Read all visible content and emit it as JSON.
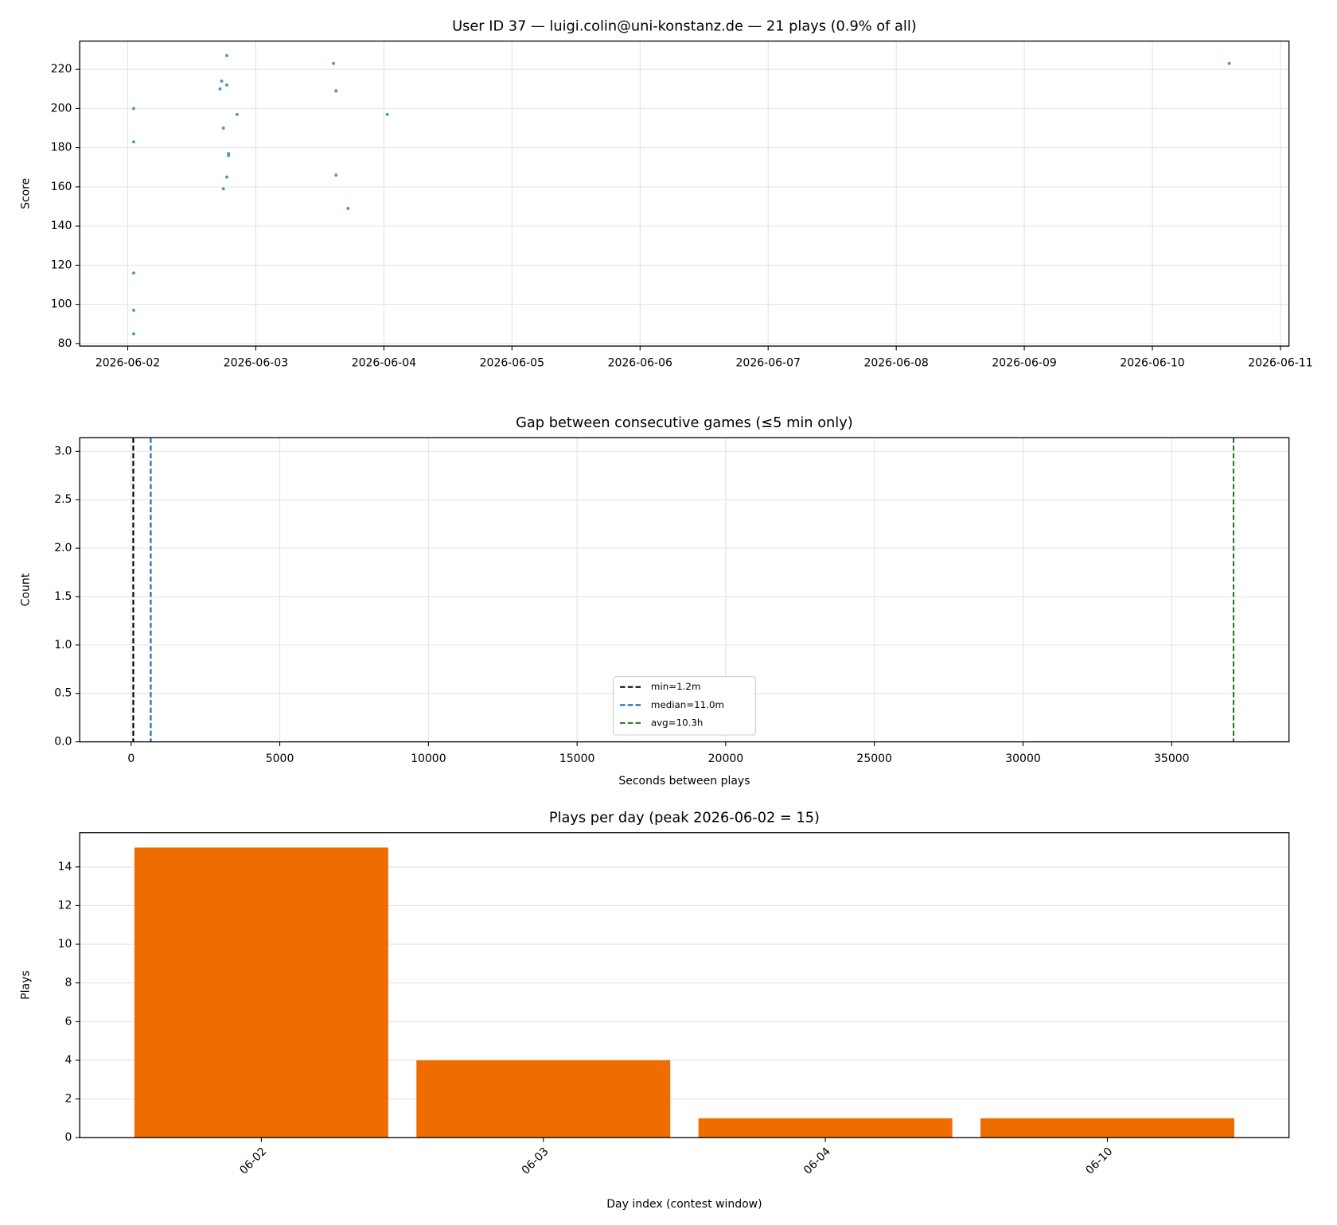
{
  "chart_data": [
    {
      "type": "scatter",
      "title": "User ID 37 — luigi.colin@uni-konstanz.de — 21 plays (0.9% of all)",
      "y_label": "Score",
      "color": "#4a95c8",
      "x": [
        "2026-06-02T01:07",
        "2026-06-02T01:07",
        "2026-06-02T01:07",
        "2026-06-02T01:07",
        "2026-06-02T01:07",
        "2026-06-02T18:34",
        "2026-06-02T17:36",
        "2026-06-02T17:17",
        "2026-06-02T18:34",
        "2026-06-02T20:29",
        "2026-06-02T17:55",
        "2026-06-02T18:53",
        "2026-06-02T18:53",
        "2026-06-02T18:34",
        "2026-06-02T17:55",
        "2026-06-03T14:34",
        "2026-06-03T15:02",
        "2026-06-03T15:02",
        "2026-06-03T17:17",
        "2026-06-04T00:38",
        "2026-06-10T14:24"
      ],
      "values": [
        200,
        183,
        116,
        97,
        85,
        227,
        214,
        210,
        212,
        197,
        190,
        177,
        176,
        165,
        159,
        223,
        209,
        166,
        149,
        197,
        223
      ],
      "xlim": [
        "2026-06-01T15:00",
        "2026-06-11T01:36"
      ],
      "xticks": [
        "2026-06-02",
        "2026-06-03",
        "2026-06-04",
        "2026-06-05",
        "2026-06-06",
        "2026-06-07",
        "2026-06-08",
        "2026-06-09",
        "2026-06-10",
        "2026-06-11"
      ],
      "ylim": [
        78.7,
        234.4
      ],
      "yticks": [
        80,
        100,
        120,
        140,
        160,
        180,
        200,
        220
      ],
      "grid": true
    },
    {
      "type": "vlines",
      "title": "Gap between consecutive games (≤5 min only)",
      "x_label": "Seconds between plays",
      "y_label": "Count",
      "lines": [
        {
          "name": "min=1.2m",
          "color": "#000000",
          "x": 72
        },
        {
          "name": "median=11.0m",
          "color": "#1565c0",
          "x": 660
        },
        {
          "name": "avg=10.3h",
          "color": "#2e7d32",
          "x": 37080
        }
      ],
      "xlim": [
        -1730,
        38946
      ],
      "xticks": [
        0,
        5000,
        10000,
        15000,
        20000,
        25000,
        30000,
        35000
      ],
      "ylim": [
        0,
        3.14
      ],
      "yticks": [
        {
          "value": 0,
          "label": "0.0"
        },
        {
          "value": 0.5,
          "label": "0.5"
        },
        {
          "value": 1,
          "label": "1.0"
        },
        {
          "value": 1.5,
          "label": "1.5"
        },
        {
          "value": 2,
          "label": "2.0"
        },
        {
          "value": 2.5,
          "label": "2.5"
        },
        {
          "value": 3,
          "label": "3.0"
        }
      ],
      "grid": true,
      "legend": "lower center"
    },
    {
      "type": "bar",
      "title": "Plays per day (peak 2026-06-02 = 15)",
      "x_label": "Day index (contest window)",
      "y_label": "Plays",
      "categories": [
        "06-02",
        "06-03",
        "06-04",
        "06-10"
      ],
      "values": [
        15,
        4,
        1,
        1
      ],
      "color": "#ef6c00",
      "ylim": [
        0,
        15.77
      ],
      "yticks": [
        0,
        2,
        4,
        6,
        8,
        10,
        12,
        14
      ],
      "grid": true
    }
  ]
}
